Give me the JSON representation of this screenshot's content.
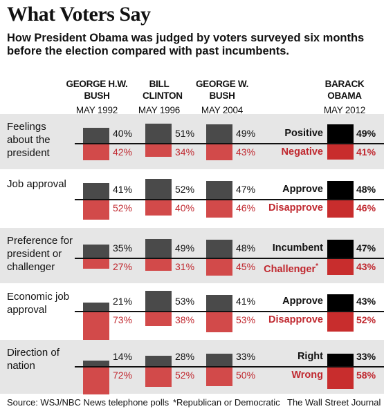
{
  "title": "What Voters Say",
  "subtitle": "How President Obama was judged by voters surveyed six months before the election compared with past incumbents.",
  "columns": [
    {
      "name": "GEORGE H.W. BUSH",
      "date": "MAY 1992"
    },
    {
      "name": "BILL CLINTON",
      "date": "MAY 1996"
    },
    {
      "name": "GEORGE W. BUSH",
      "date": "MAY 2004"
    },
    {
      "name": "BARACK OBAMA",
      "date": "MAY 2012"
    }
  ],
  "footer": {
    "source": "Source: WSJ/NBC News telephone polls",
    "note": "*Republican or Democratic",
    "credit": "The Wall Street Journal"
  },
  "colors": {
    "positive_bar": "#4a4a4a",
    "negative_bar": "#d24a4a",
    "obama_positive_bar": "#000000",
    "obama_negative_bar": "#c82d2d",
    "negative_text": "#c0282f",
    "row_shade": "#e6e6e6"
  },
  "chart_data": {
    "type": "bar",
    "unit": "%",
    "categories": [
      "GEORGE H.W. BUSH",
      "BILL CLINTON",
      "GEORGE W. BUSH",
      "BARACK OBAMA"
    ],
    "questions": [
      {
        "label": "Feelings about the president",
        "positive_label": "Positive",
        "negative_label": "Negative",
        "positive": [
          40,
          51,
          49,
          49
        ],
        "negative": [
          42,
          34,
          43,
          41
        ],
        "positive_text": [
          "40%",
          "51%",
          "49%",
          "49%"
        ],
        "negative_text": [
          "42%",
          "34%",
          "43%",
          "41%"
        ]
      },
      {
        "label": "Job approval",
        "positive_label": "Approve",
        "negative_label": "Disapprove",
        "positive": [
          41,
          52,
          47,
          48
        ],
        "negative": [
          52,
          40,
          46,
          46
        ],
        "positive_text": [
          "41%",
          "52%",
          "47%",
          "48%"
        ],
        "negative_text": [
          "52%",
          "40%",
          "46%",
          "46%"
        ]
      },
      {
        "label": "Preference for president or challenger",
        "positive_label": "Incumbent",
        "negative_label": "Challenger",
        "negative_label_mark": "*",
        "positive": [
          35,
          49,
          48,
          47
        ],
        "negative": [
          27,
          31,
          45,
          43
        ],
        "positive_text": [
          "35%",
          "49%",
          "48%",
          "47%"
        ],
        "negative_text": [
          "27%",
          "31%",
          "45%",
          "43%"
        ]
      },
      {
        "label": "Economic job approval",
        "positive_label": "Approve",
        "negative_label": "Disapprove",
        "positive": [
          21,
          53,
          41,
          43
        ],
        "negative": [
          73,
          38,
          53,
          52
        ],
        "positive_text": [
          "21%",
          "53%",
          "41%",
          "43%"
        ],
        "negative_text": [
          "73%",
          "38%",
          "53%",
          "52%"
        ]
      },
      {
        "label": "Direction of nation",
        "positive_label": "Right",
        "negative_label": "Wrong",
        "positive": [
          14,
          28,
          33,
          33
        ],
        "negative": [
          72,
          52,
          50,
          58
        ],
        "positive_text": [
          "14%",
          "28%",
          "33%",
          "33%"
        ],
        "negative_text": [
          "72%",
          "52%",
          "50%",
          "58%"
        ]
      }
    ]
  }
}
